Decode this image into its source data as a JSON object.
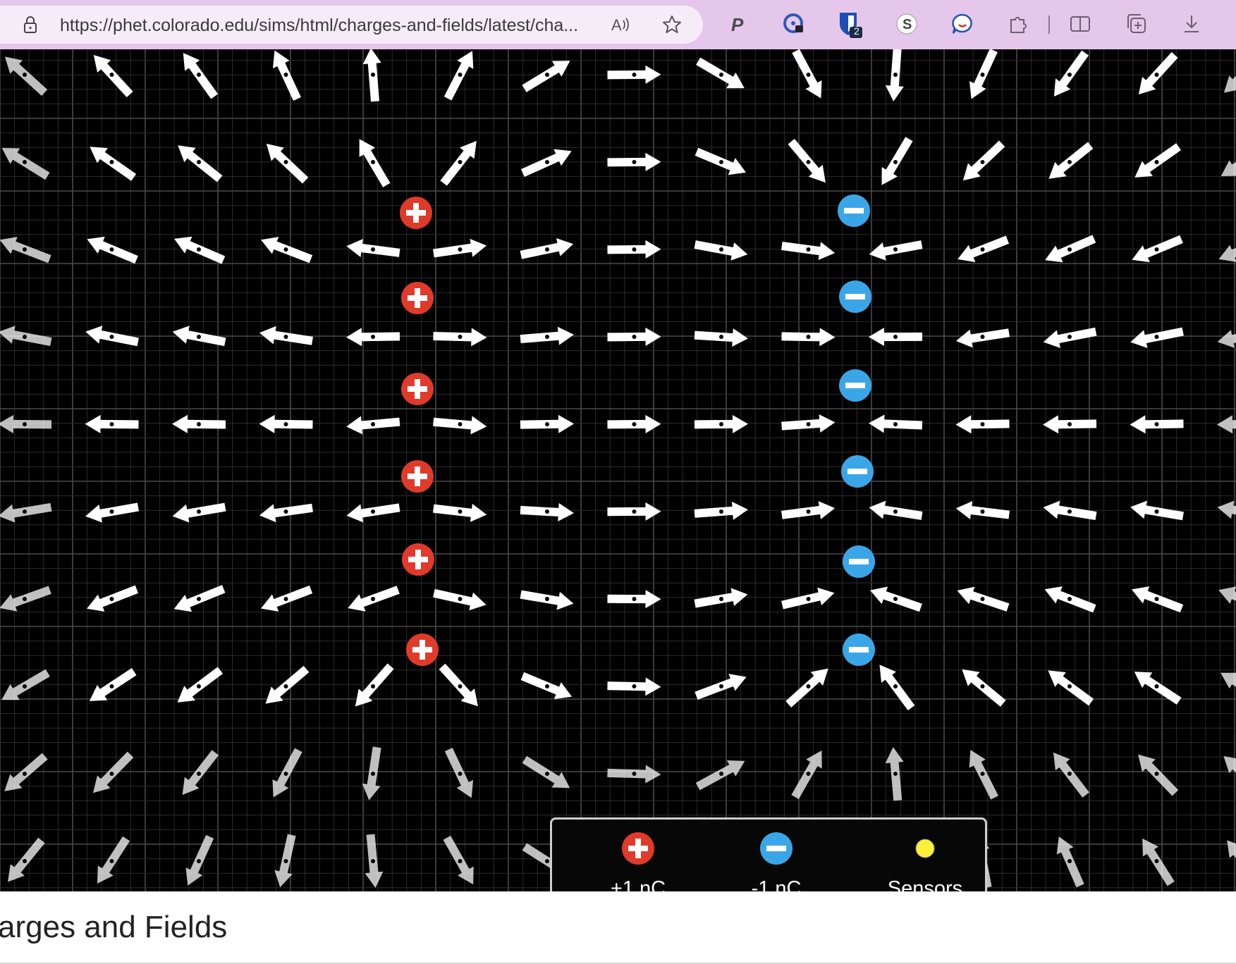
{
  "browser": {
    "url": "https://phet.colorado.edu/sims/html/charges-and-fields/latest/cha...",
    "extensions": [
      "paypal-icon",
      "password-manager-icon",
      "bitwarden-icon",
      "s-extension-icon",
      "chat-extension-icon",
      "puzzle-extensions-icon",
      "split-screen-icon",
      "collections-icon",
      "download-icon"
    ],
    "bitwarden_badge": "2"
  },
  "sim": {
    "background": "#000000",
    "charges": [
      {
        "type": "positive",
        "count": 6
      },
      {
        "type": "negative",
        "count": 6
      }
    ],
    "colors": {
      "positive": "#e03a2a",
      "negative": "#3aa6e8",
      "sensor": "#ffef3a",
      "arrow": "#ffffff"
    }
  },
  "toolbox": {
    "items": [
      {
        "label": "+1 nC",
        "kind": "positive-charge"
      },
      {
        "label": "-1 nC",
        "kind": "negative-charge"
      },
      {
        "label": "Sensors",
        "kind": "sensor"
      }
    ]
  },
  "footer": {
    "title": "arges and Fields"
  }
}
